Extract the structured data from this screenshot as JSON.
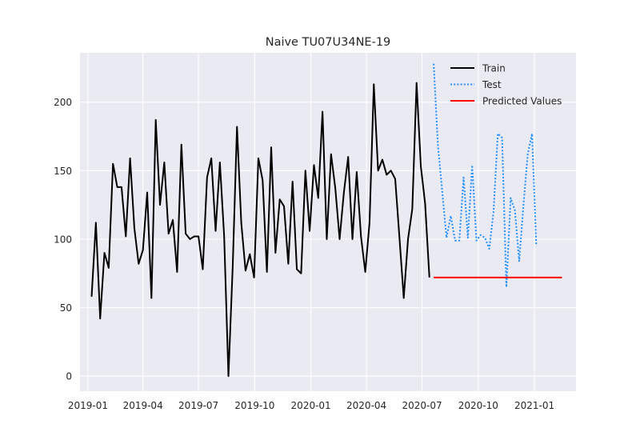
{
  "chart_data": {
    "type": "line",
    "title": "Naive TU07U34NE-19",
    "xlabel": "",
    "ylabel": "",
    "xlim": [
      "2018-12-19",
      "2021-03-10"
    ],
    "ylim": [
      -11,
      236
    ],
    "grid": true,
    "legend_position": "top-right",
    "x_ticks": [
      "2019-01",
      "2019-04",
      "2019-07",
      "2019-10",
      "2020-01",
      "2020-04",
      "2020-07",
      "2020-10",
      "2021-01"
    ],
    "y_ticks": [
      0,
      50,
      100,
      150,
      200
    ],
    "colors": {
      "train": "#000000",
      "test": "#1f8fff",
      "predicted": "#ff0000",
      "plot_bg": "#eaeaf2",
      "grid": "#ffffff"
    },
    "series": [
      {
        "name": "Train",
        "style": "solid",
        "color": "#000000",
        "points": [
          {
            "x": "2019-01-07",
            "y": 58
          },
          {
            "x": "2019-01-14",
            "y": 112
          },
          {
            "x": "2019-01-21",
            "y": 42
          },
          {
            "x": "2019-01-28",
            "y": 90
          },
          {
            "x": "2019-02-04",
            "y": 79
          },
          {
            "x": "2019-02-11",
            "y": 155
          },
          {
            "x": "2019-02-18",
            "y": 138
          },
          {
            "x": "2019-02-25",
            "y": 138
          },
          {
            "x": "2019-03-04",
            "y": 102
          },
          {
            "x": "2019-03-11",
            "y": 159
          },
          {
            "x": "2019-03-18",
            "y": 108
          },
          {
            "x": "2019-03-25",
            "y": 82
          },
          {
            "x": "2019-04-01",
            "y": 92
          },
          {
            "x": "2019-04-08",
            "y": 134
          },
          {
            "x": "2019-04-15",
            "y": 57
          },
          {
            "x": "2019-04-22",
            "y": 187
          },
          {
            "x": "2019-04-29",
            "y": 125
          },
          {
            "x": "2019-05-06",
            "y": 156
          },
          {
            "x": "2019-05-13",
            "y": 104
          },
          {
            "x": "2019-05-20",
            "y": 114
          },
          {
            "x": "2019-05-27",
            "y": 76
          },
          {
            "x": "2019-06-03",
            "y": 169
          },
          {
            "x": "2019-06-10",
            "y": 104
          },
          {
            "x": "2019-06-17",
            "y": 100
          },
          {
            "x": "2019-06-24",
            "y": 102
          },
          {
            "x": "2019-07-01",
            "y": 102
          },
          {
            "x": "2019-07-08",
            "y": 78
          },
          {
            "x": "2019-07-15",
            "y": 145
          },
          {
            "x": "2019-07-22",
            "y": 159
          },
          {
            "x": "2019-07-29",
            "y": 106
          },
          {
            "x": "2019-08-05",
            "y": 156
          },
          {
            "x": "2019-08-12",
            "y": 102
          },
          {
            "x": "2019-08-19",
            "y": 0
          },
          {
            "x": "2019-08-26",
            "y": 80
          },
          {
            "x": "2019-09-02",
            "y": 182
          },
          {
            "x": "2019-09-09",
            "y": 112
          },
          {
            "x": "2019-09-16",
            "y": 77
          },
          {
            "x": "2019-09-23",
            "y": 89
          },
          {
            "x": "2019-09-30",
            "y": 72
          },
          {
            "x": "2019-10-07",
            "y": 159
          },
          {
            "x": "2019-10-14",
            "y": 143
          },
          {
            "x": "2019-10-21",
            "y": 76
          },
          {
            "x": "2019-10-28",
            "y": 167
          },
          {
            "x": "2019-11-04",
            "y": 90
          },
          {
            "x": "2019-11-11",
            "y": 129
          },
          {
            "x": "2019-11-18",
            "y": 124
          },
          {
            "x": "2019-11-25",
            "y": 82
          },
          {
            "x": "2019-12-02",
            "y": 142
          },
          {
            "x": "2019-12-09",
            "y": 78
          },
          {
            "x": "2019-12-16",
            "y": 75
          },
          {
            "x": "2019-12-23",
            "y": 150
          },
          {
            "x": "2019-12-30",
            "y": 106
          },
          {
            "x": "2020-01-06",
            "y": 154
          },
          {
            "x": "2020-01-13",
            "y": 130
          },
          {
            "x": "2020-01-20",
            "y": 193
          },
          {
            "x": "2020-01-27",
            "y": 100
          },
          {
            "x": "2020-02-03",
            "y": 162
          },
          {
            "x": "2020-02-10",
            "y": 137
          },
          {
            "x": "2020-02-17",
            "y": 100
          },
          {
            "x": "2020-02-24",
            "y": 134
          },
          {
            "x": "2020-03-02",
            "y": 160
          },
          {
            "x": "2020-03-09",
            "y": 100
          },
          {
            "x": "2020-03-16",
            "y": 149
          },
          {
            "x": "2020-03-23",
            "y": 102
          },
          {
            "x": "2020-03-30",
            "y": 76
          },
          {
            "x": "2020-04-06",
            "y": 112
          },
          {
            "x": "2020-04-13",
            "y": 213
          },
          {
            "x": "2020-04-20",
            "y": 150
          },
          {
            "x": "2020-04-27",
            "y": 158
          },
          {
            "x": "2020-05-04",
            "y": 147
          },
          {
            "x": "2020-05-11",
            "y": 150
          },
          {
            "x": "2020-05-18",
            "y": 144
          },
          {
            "x": "2020-05-25",
            "y": 101
          },
          {
            "x": "2020-06-01",
            "y": 57
          },
          {
            "x": "2020-06-08",
            "y": 100
          },
          {
            "x": "2020-06-15",
            "y": 122
          },
          {
            "x": "2020-06-22",
            "y": 214
          },
          {
            "x": "2020-06-29",
            "y": 153
          },
          {
            "x": "2020-07-06",
            "y": 126
          },
          {
            "x": "2020-07-13",
            "y": 72
          }
        ]
      },
      {
        "name": "Test",
        "style": "dotted",
        "color": "#1f8fff",
        "points": [
          {
            "x": "2020-07-20",
            "y": 228
          },
          {
            "x": "2020-07-27",
            "y": 168
          },
          {
            "x": "2020-08-03",
            "y": 135
          },
          {
            "x": "2020-08-10",
            "y": 101
          },
          {
            "x": "2020-08-17",
            "y": 117
          },
          {
            "x": "2020-08-24",
            "y": 99
          },
          {
            "x": "2020-08-31",
            "y": 99
          },
          {
            "x": "2020-09-07",
            "y": 145
          },
          {
            "x": "2020-09-14",
            "y": 101
          },
          {
            "x": "2020-09-21",
            "y": 154
          },
          {
            "x": "2020-09-28",
            "y": 99
          },
          {
            "x": "2020-10-05",
            "y": 103
          },
          {
            "x": "2020-10-12",
            "y": 101
          },
          {
            "x": "2020-10-19",
            "y": 93
          },
          {
            "x": "2020-10-26",
            "y": 120
          },
          {
            "x": "2020-11-02",
            "y": 177
          },
          {
            "x": "2020-11-09",
            "y": 174
          },
          {
            "x": "2020-11-16",
            "y": 65
          },
          {
            "x": "2020-11-23",
            "y": 130
          },
          {
            "x": "2020-11-30",
            "y": 121
          },
          {
            "x": "2020-12-07",
            "y": 84
          },
          {
            "x": "2020-12-14",
            "y": 125
          },
          {
            "x": "2020-12-21",
            "y": 162
          },
          {
            "x": "2020-12-28",
            "y": 177
          },
          {
            "x": "2021-01-04",
            "y": 95
          }
        ]
      },
      {
        "name": "Predicted Values",
        "style": "solid",
        "color": "#ff0000",
        "points": [
          {
            "x": "2020-07-20",
            "y": 72
          },
          {
            "x": "2021-02-15",
            "y": 72
          }
        ]
      }
    ]
  }
}
